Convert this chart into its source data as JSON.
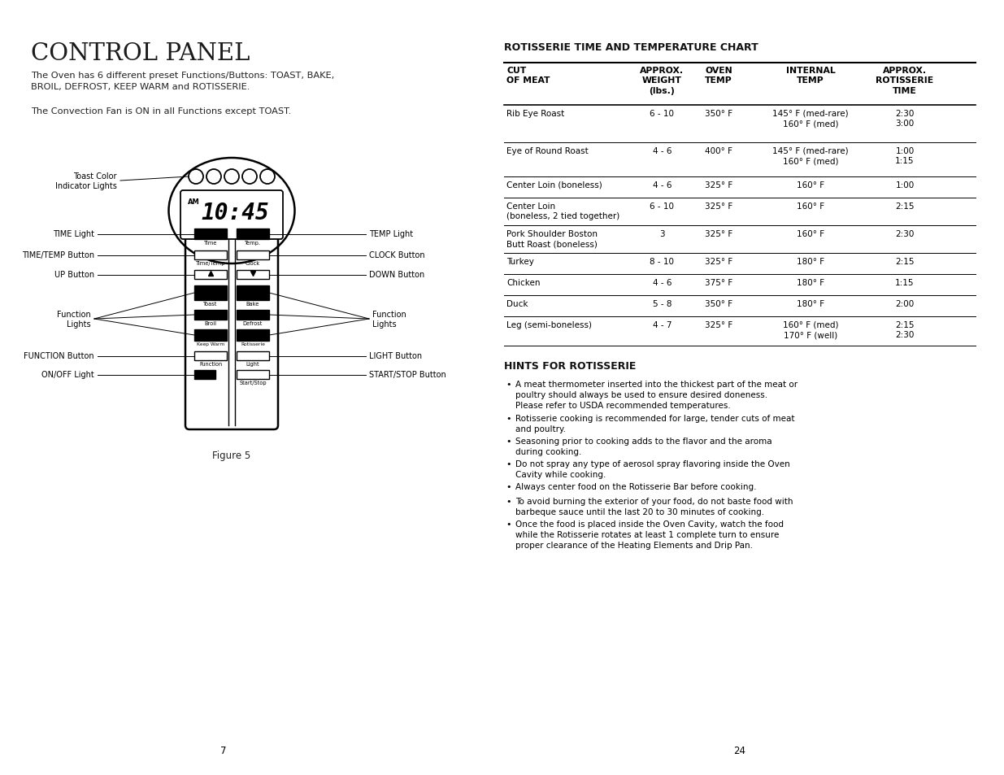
{
  "bg_color": "#ffffff",
  "left_title": "CONTROL PANEL",
  "left_para1": "The Oven has 6 different preset Functions/Buttons: TOAST, BAKE,\nBROIL, DEFROST, KEEP WARM and ROTISSERIE.",
  "left_para2": "The Convection Fan is ON in all Functions except TOAST.",
  "figure_caption": "Figure 5",
  "page_numbers": [
    "7",
    "24"
  ],
  "right_title": "ROTISSERIE TIME AND TEMPERATURE CHART",
  "table_headers": [
    "CUT\nOF MEAT",
    "APPROX.\nWEIGHT\n(lbs.)",
    "OVEN\nTEMP",
    "INTERNAL\nTEMP",
    "APPROX.\nROTISSERIE\nTIME"
  ],
  "table_rows": [
    [
      "Rib Eye Roast",
      "6 - 10",
      "350° F",
      "145° F (med-rare)\n160° F (med)",
      "2:30\n3:00"
    ],
    [
      "Eye of Round Roast",
      "4 - 6",
      "400° F",
      "145° F (med-rare)\n160° F (med)",
      "1:00\n1:15"
    ],
    [
      "Center Loin (boneless)",
      "4 - 6",
      "325° F",
      "160° F",
      "1:00"
    ],
    [
      "Center Loin\n(boneless, 2 tied together)",
      "6 - 10",
      "325° F",
      "160° F",
      "2:15"
    ],
    [
      "Pork Shoulder Boston\nButt Roast (boneless)",
      "3",
      "325° F",
      "160° F",
      "2:30"
    ],
    [
      "Turkey",
      "8 - 10",
      "325° F",
      "180° F",
      "2:15"
    ],
    [
      "Chicken",
      "4 - 6",
      "375° F",
      "180° F",
      "1:15"
    ],
    [
      "Duck",
      "5 - 8",
      "350° F",
      "180° F",
      "2:00"
    ],
    [
      "Leg (semi-boneless)",
      "4 - 7",
      "325° F",
      "160° F (med)\n170° F (well)",
      "2:15\n2:30"
    ]
  ],
  "hints_title": "HINTS FOR ROTISSERIE",
  "hints": [
    "A meat thermometer inserted into the thickest part of the meat or\npoultry should always be used to ensure desired doneness.\nPlease refer to USDA recommended temperatures.",
    "Rotisserie cooking is recommended for large, tender cuts of meat\nand poultry.",
    "Seasoning prior to cooking adds to the flavor and the aroma\nduring cooking.",
    "Do not spray any type of aerosol spray flavoring inside the Oven\nCavity while cooking.",
    "Always center food on the Rotisserie Bar before cooking.",
    "To avoid burning the exterior of your food, do not baste food with\nbarbeque sauce until the last 20 to 30 minutes of cooking.",
    "Once the food is placed inside the Oven Cavity, watch the food\nwhile the Rotisserie rotates at least 1 complete turn to ensure\nproper clearance of the Heating Elements and Drip Pan."
  ]
}
